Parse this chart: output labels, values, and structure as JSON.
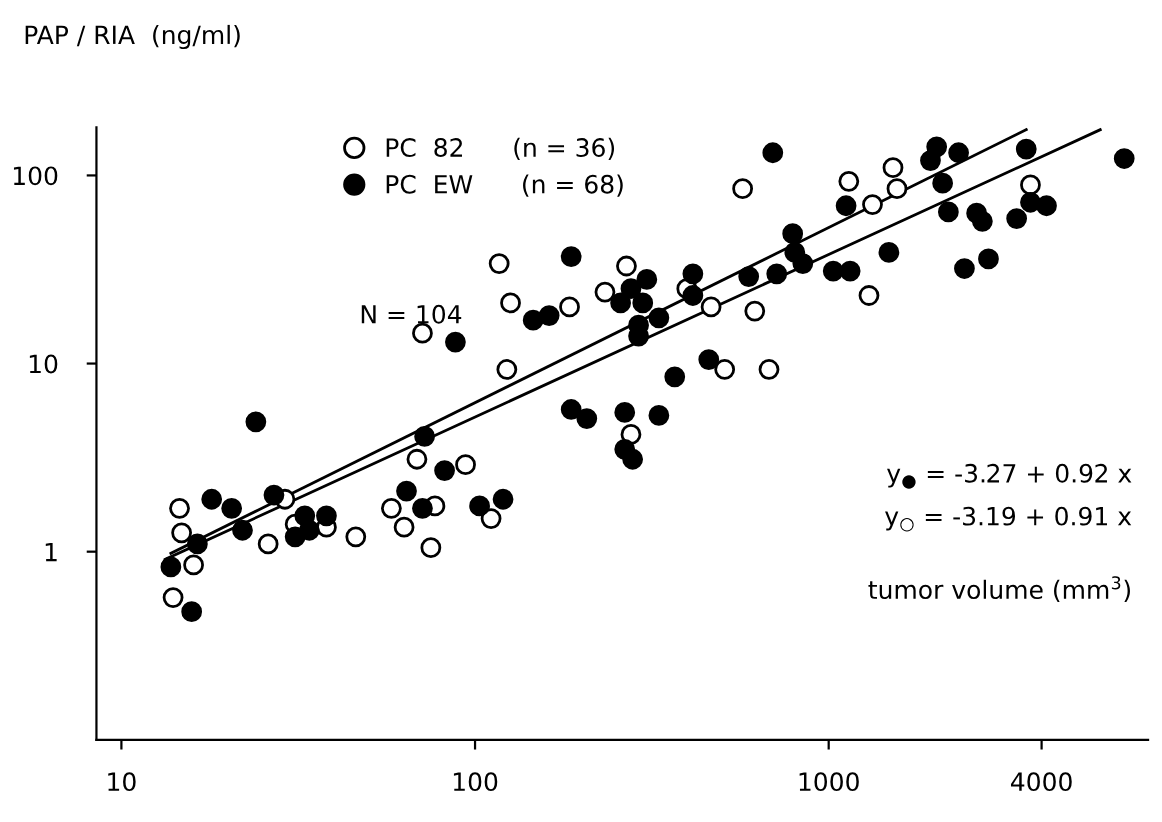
{
  "chart_data": {
    "type": "scatter",
    "ylabel": "PAP / RIA  (ng/ml)",
    "xlabel": "tumor volume (mm$^{3}$)",
    "log": "xy",
    "xlim": [
      8.5,
      8000
    ],
    "ylim": [
      0.1,
      180
    ],
    "xticks": [
      10,
      100,
      1000,
      4000
    ],
    "yticks": [
      1,
      10,
      100
    ],
    "grid": false,
    "legend": "top left",
    "annotations": [
      "N = 104",
      "y$_{●}$ = -3.27 + 0.92 x",
      "y$_{○}$ = -3.19 + 0.91 x"
    ],
    "series": [
      {
        "name": "PC  82      (n = 36)",
        "color": "#ffffff",
        "marker": "circle",
        "x": [
          68.5,
          94,
          14.6,
          14.8,
          16,
          14,
          29,
          31,
          26,
          38,
          46,
          58,
          63,
          77,
          75,
          111,
          71,
          117,
          126,
          185,
          123,
          571,
          1140,
          1520,
          1560,
          1330,
          3720,
          268,
          233,
          397,
          465,
          618,
          1300,
          508,
          678,
          276
        ],
        "values": [
          3.1,
          2.9,
          1.7,
          1.26,
          0.85,
          0.57,
          1.9,
          1.4,
          1.1,
          1.35,
          1.2,
          1.7,
          1.35,
          1.75,
          1.05,
          1.5,
          14.5,
          34,
          21,
          20,
          9.3,
          85,
          93,
          110,
          85,
          70,
          89,
          33,
          24,
          25,
          20,
          19,
          23,
          9.3,
          9.3,
          4.2
        ]
      },
      {
        "name": "PC  EW      (n = 68)",
        "color": "#000000",
        "marker": "circle",
        "x": [
          24,
          187,
          207,
          72,
          82,
          18,
          20.5,
          27,
          33,
          38,
          34,
          31,
          22,
          16.4,
          13.8,
          15.8,
          64,
          71,
          103,
          120,
          187,
          88,
          146,
          162,
          695,
          2020,
          1940,
          2330,
          3620,
          6850,
          2100,
          1120,
          2180,
          2620,
          2720,
          3400,
          3720,
          4130,
          791,
          802,
          845,
          1480,
          1030,
          1150,
          2420,
          2830,
          594,
          713,
          413,
          413,
          306,
          276,
          258,
          298,
          331,
          290,
          290,
          458,
          367,
          265,
          331,
          265,
          279
        ],
        "values": [
          4.9,
          5.7,
          5.1,
          4.1,
          2.7,
          1.9,
          1.7,
          2.0,
          1.55,
          1.55,
          1.3,
          1.2,
          1.3,
          1.1,
          0.83,
          0.48,
          2.1,
          1.7,
          1.75,
          1.9,
          37,
          13,
          17,
          18,
          132,
          142,
          120,
          132,
          138,
          123,
          91,
          69,
          64,
          63,
          57,
          59,
          72,
          69,
          49,
          39,
          34,
          39,
          31,
          31,
          32,
          36,
          29,
          30,
          30,
          23,
          28,
          25,
          21,
          21,
          17.5,
          16,
          14,
          10.5,
          8.5,
          5.5,
          5.3,
          3.5,
          3.1
        ]
      },
      {
        "type": "line",
        "color": "#000000",
        "marker": "none",
        "x": [
          13.8,
          3620
        ],
        "values": [
          0.98,
          175
        ]
      },
      {
        "type": "line",
        "color": "#000000",
        "marker": "none",
        "x": [
          13.3,
          5860
        ],
        "values": [
          0.91,
          175
        ]
      }
    ]
  }
}
